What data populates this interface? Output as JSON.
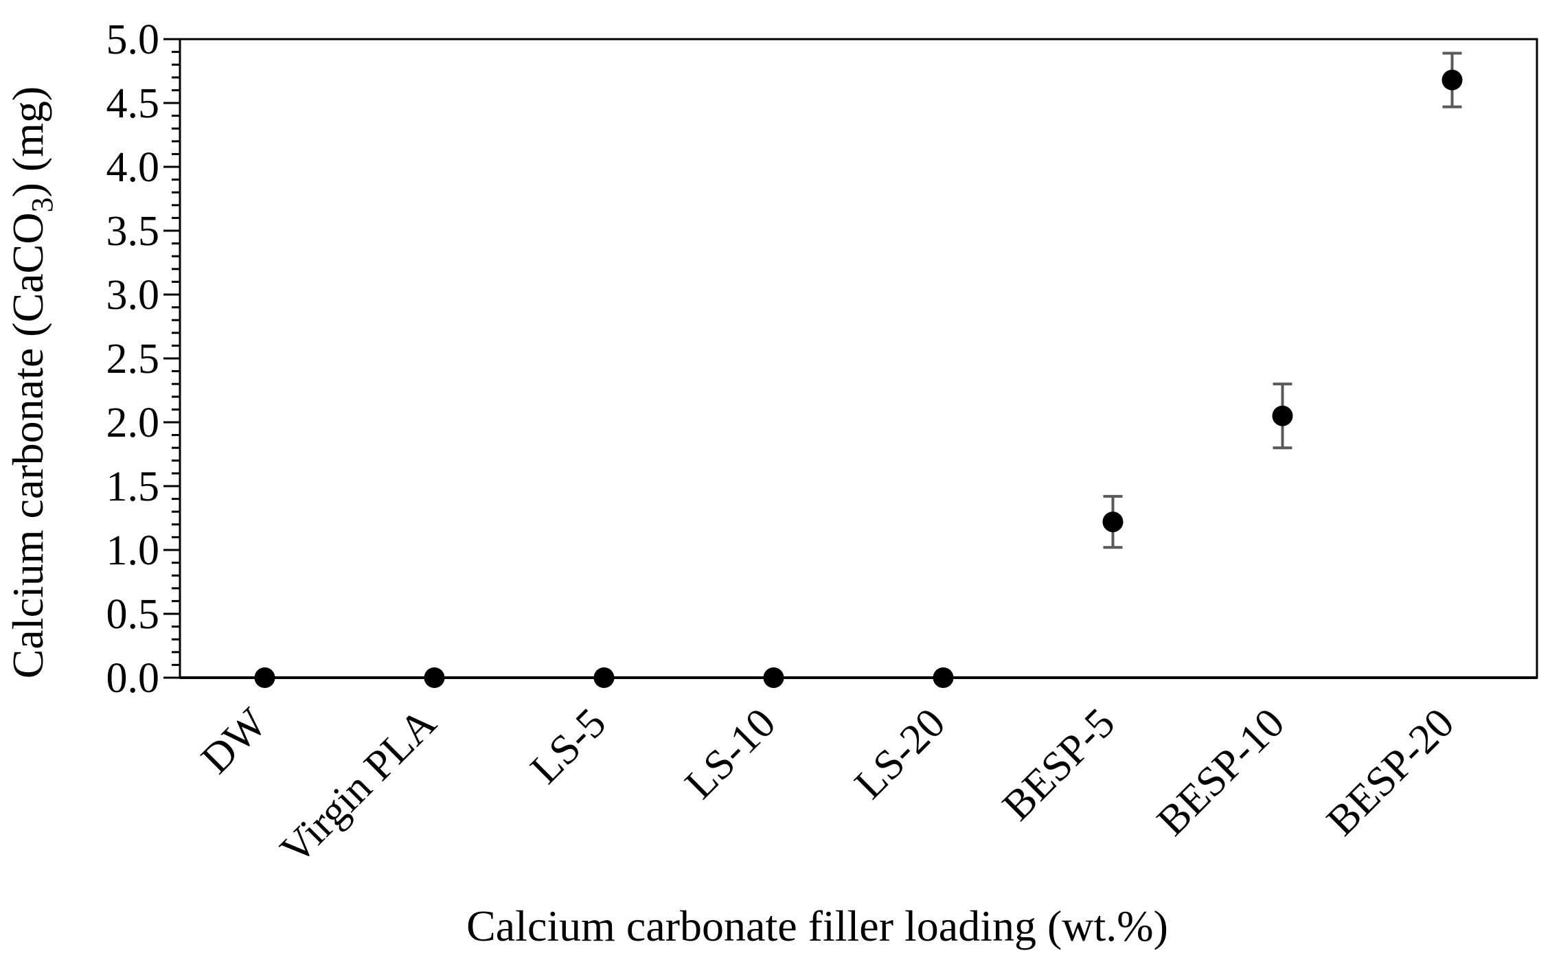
{
  "chart_data": {
    "type": "scatter",
    "xlabel": "Calcium carbonate filler loading (wt.%)",
    "ylabel": {
      "prefix": "Calcium carbonate (CaCO",
      "subscript": "3",
      "suffix": ") (mg)"
    },
    "ylim": [
      0,
      5.0
    ],
    "ytick_step": 0.5,
    "ytick_labels": [
      "0.0",
      "0.5",
      "1.0",
      "1.5",
      "2.0",
      "2.5",
      "3.0",
      "3.5",
      "4.0",
      "4.5",
      "5.0"
    ],
    "grid": false,
    "legend": "none",
    "categories": [
      "DW",
      "Virgin PLA",
      "LS-5",
      "LS-10",
      "LS-20",
      "BESP-5",
      "BESP-10",
      "BESP-20"
    ],
    "series": [
      {
        "values": [
          0.0,
          0.0,
          0.0,
          0.0,
          0.0,
          1.22,
          2.05,
          4.68
        ],
        "error": [
          0,
          0,
          0,
          0,
          0,
          0.2,
          0.25,
          0.21
        ]
      }
    ],
    "colors": {
      "marker": "#000000",
      "errorbar": "#595959",
      "axis": "#000000"
    }
  }
}
